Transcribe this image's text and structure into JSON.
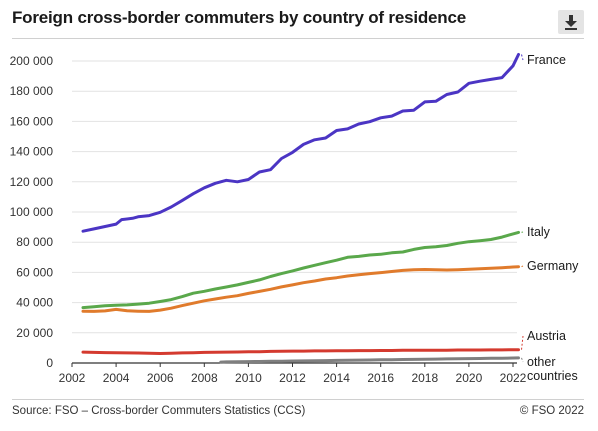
{
  "header": {
    "title": "Foreign cross-border commuters by country of residence",
    "download_icon": "download-icon"
  },
  "footer": {
    "source": "Source: FSO – Cross-border Commuters Statistics (CCS)",
    "copyright": "© FSO 2022"
  },
  "chart_data": {
    "type": "line",
    "title": "Foreign cross-border commuters by country of residence",
    "xlabel": "",
    "ylabel": "",
    "xlim": [
      2002,
      2022
    ],
    "ylim": [
      0,
      200000
    ],
    "x_ticks": [
      2002,
      2004,
      2006,
      2008,
      2010,
      2012,
      2014,
      2016,
      2018,
      2020,
      2022
    ],
    "y_ticks": [
      0,
      20000,
      40000,
      60000,
      80000,
      100000,
      120000,
      140000,
      160000,
      180000,
      200000
    ],
    "y_tick_labels": [
      "0",
      "20 000",
      "40 000",
      "60 000",
      "80 000",
      "100 000",
      "120 000",
      "140 000",
      "160 000",
      "180 000",
      "200 000"
    ],
    "x_tick_labels": [
      "2002",
      "2004",
      "2006",
      "2008",
      "2010",
      "2012",
      "2014",
      "2016",
      "2018",
      "2020",
      "2022"
    ],
    "grid": "horizontal",
    "legend": "inline-right",
    "series": [
      {
        "name": "France",
        "color": "#4b35c4",
        "points": [
          [
            2002.5,
            87300
          ],
          [
            2003,
            88800
          ],
          [
            2003.5,
            90400
          ],
          [
            2004,
            92000
          ],
          [
            2004.25,
            95000
          ],
          [
            2004.75,
            95800
          ],
          [
            2005,
            96800
          ],
          [
            2005.5,
            97600
          ],
          [
            2006,
            99800
          ],
          [
            2006.5,
            103300
          ],
          [
            2007,
            107700
          ],
          [
            2007.5,
            112100
          ],
          [
            2008,
            116000
          ],
          [
            2008.5,
            119000
          ],
          [
            2009,
            121000
          ],
          [
            2009.5,
            120000
          ],
          [
            2010,
            121500
          ],
          [
            2010.5,
            126500
          ],
          [
            2011,
            128000
          ],
          [
            2011.5,
            135400
          ],
          [
            2012,
            139500
          ],
          [
            2012.5,
            144800
          ],
          [
            2013,
            147800
          ],
          [
            2013.5,
            149000
          ],
          [
            2014,
            154000
          ],
          [
            2014.5,
            155000
          ],
          [
            2015,
            158300
          ],
          [
            2015.5,
            159800
          ],
          [
            2016,
            162400
          ],
          [
            2016.5,
            163500
          ],
          [
            2017,
            166900
          ],
          [
            2017.5,
            167400
          ],
          [
            2018,
            172900
          ],
          [
            2018.5,
            173300
          ],
          [
            2019,
            177800
          ],
          [
            2019.5,
            179500
          ],
          [
            2020,
            185200
          ],
          [
            2020.5,
            186600
          ],
          [
            2021,
            187800
          ],
          [
            2021.5,
            189000
          ],
          [
            2022,
            196800
          ],
          [
            2022.25,
            204300
          ]
        ]
      },
      {
        "name": "Italy",
        "color": "#5aa84b",
        "points": [
          [
            2002.5,
            36700
          ],
          [
            2003,
            37200
          ],
          [
            2003.5,
            37900
          ],
          [
            2004,
            38300
          ],
          [
            2004.5,
            38500
          ],
          [
            2005,
            39000
          ],
          [
            2005.5,
            39600
          ],
          [
            2006,
            40700
          ],
          [
            2006.5,
            42000
          ],
          [
            2007,
            44000
          ],
          [
            2007.5,
            46200
          ],
          [
            2008,
            47500
          ],
          [
            2008.5,
            49000
          ],
          [
            2009,
            50300
          ],
          [
            2009.5,
            51700
          ],
          [
            2010,
            53400
          ],
          [
            2010.5,
            55000
          ],
          [
            2011,
            57300
          ],
          [
            2011.5,
            59200
          ],
          [
            2012,
            61000
          ],
          [
            2012.5,
            62900
          ],
          [
            2013,
            64700
          ],
          [
            2013.5,
            66400
          ],
          [
            2014,
            68100
          ],
          [
            2014.5,
            70000
          ],
          [
            2015,
            70600
          ],
          [
            2015.5,
            71500
          ],
          [
            2016,
            72000
          ],
          [
            2016.5,
            73000
          ],
          [
            2017,
            73500
          ],
          [
            2017.5,
            75200
          ],
          [
            2018,
            76500
          ],
          [
            2018.5,
            77000
          ],
          [
            2019,
            77800
          ],
          [
            2019.5,
            79300
          ],
          [
            2020,
            80300
          ],
          [
            2020.5,
            81000
          ],
          [
            2021,
            81800
          ],
          [
            2021.5,
            83400
          ],
          [
            2022,
            85500
          ],
          [
            2022.25,
            86500
          ]
        ]
      },
      {
        "name": "Germany",
        "color": "#e07b2c",
        "points": [
          [
            2002.5,
            34300
          ],
          [
            2003,
            34200
          ],
          [
            2003.5,
            34500
          ],
          [
            2004,
            35500
          ],
          [
            2004.5,
            34600
          ],
          [
            2005,
            34300
          ],
          [
            2005.5,
            34200
          ],
          [
            2006,
            35000
          ],
          [
            2006.5,
            36300
          ],
          [
            2007,
            38000
          ],
          [
            2007.5,
            39600
          ],
          [
            2008,
            41200
          ],
          [
            2008.5,
            42400
          ],
          [
            2009,
            43600
          ],
          [
            2009.5,
            44600
          ],
          [
            2010,
            46100
          ],
          [
            2010.5,
            47400
          ],
          [
            2011,
            48800
          ],
          [
            2011.5,
            50400
          ],
          [
            2012,
            51700
          ],
          [
            2012.5,
            53200
          ],
          [
            2013,
            54300
          ],
          [
            2013.5,
            55600
          ],
          [
            2014,
            56500
          ],
          [
            2014.5,
            57600
          ],
          [
            2015,
            58500
          ],
          [
            2015.5,
            59200
          ],
          [
            2016,
            59900
          ],
          [
            2016.5,
            60600
          ],
          [
            2017,
            61300
          ],
          [
            2017.5,
            61800
          ],
          [
            2018,
            61900
          ],
          [
            2018.5,
            61700
          ],
          [
            2019,
            61600
          ],
          [
            2019.5,
            61800
          ],
          [
            2020,
            62100
          ],
          [
            2020.5,
            62400
          ],
          [
            2021,
            62800
          ],
          [
            2021.5,
            63100
          ],
          [
            2022,
            63600
          ],
          [
            2022.25,
            63800
          ]
        ]
      },
      {
        "name": "Austria",
        "color": "#d43a2f",
        "points": [
          [
            2002.5,
            7200
          ],
          [
            2003,
            7000
          ],
          [
            2003.5,
            6900
          ],
          [
            2004,
            6800
          ],
          [
            2004.5,
            6700
          ],
          [
            2005,
            6600
          ],
          [
            2005.5,
            6500
          ],
          [
            2006,
            6300
          ],
          [
            2006.5,
            6500
          ],
          [
            2007,
            6700
          ],
          [
            2007.5,
            6800
          ],
          [
            2008,
            7000
          ],
          [
            2008.5,
            7100
          ],
          [
            2009,
            7200
          ],
          [
            2009.5,
            7300
          ],
          [
            2010,
            7400
          ],
          [
            2010.5,
            7500
          ],
          [
            2011,
            7700
          ],
          [
            2011.5,
            7800
          ],
          [
            2012,
            7900
          ],
          [
            2012.5,
            7900
          ],
          [
            2013,
            8000
          ],
          [
            2013.5,
            8000
          ],
          [
            2014,
            8100
          ],
          [
            2014.5,
            8100
          ],
          [
            2015,
            8200
          ],
          [
            2015.5,
            8200
          ],
          [
            2016,
            8300
          ],
          [
            2016.5,
            8300
          ],
          [
            2017,
            8400
          ],
          [
            2017.5,
            8400
          ],
          [
            2018,
            8500
          ],
          [
            2018.5,
            8500
          ],
          [
            2019,
            8500
          ],
          [
            2019.5,
            8600
          ],
          [
            2020,
            8600
          ],
          [
            2020.5,
            8600
          ],
          [
            2021,
            8700
          ],
          [
            2021.5,
            8700
          ],
          [
            2022,
            8800
          ],
          [
            2022.25,
            8800
          ]
        ]
      },
      {
        "name": "other countries",
        "color": "#7f7f7f",
        "points": [
          [
            2008.75,
            600
          ],
          [
            2009,
            700
          ],
          [
            2009.5,
            800
          ],
          [
            2010,
            900
          ],
          [
            2010.5,
            1000
          ],
          [
            2011,
            1100
          ],
          [
            2011.5,
            1200
          ],
          [
            2012,
            1300
          ],
          [
            2012.5,
            1400
          ],
          [
            2013,
            1500
          ],
          [
            2013.5,
            1600
          ],
          [
            2014,
            1700
          ],
          [
            2014.5,
            1800
          ],
          [
            2015,
            1900
          ],
          [
            2015.5,
            2000
          ],
          [
            2016,
            2100
          ],
          [
            2016.5,
            2200
          ],
          [
            2017,
            2300
          ],
          [
            2017.5,
            2400
          ],
          [
            2018,
            2500
          ],
          [
            2018.5,
            2600
          ],
          [
            2019,
            2700
          ],
          [
            2019.5,
            2800
          ],
          [
            2020,
            2900
          ],
          [
            2020.5,
            3000
          ],
          [
            2021,
            3100
          ],
          [
            2021.5,
            3200
          ],
          [
            2022,
            3300
          ],
          [
            2022.25,
            3400
          ]
        ]
      }
    ]
  }
}
